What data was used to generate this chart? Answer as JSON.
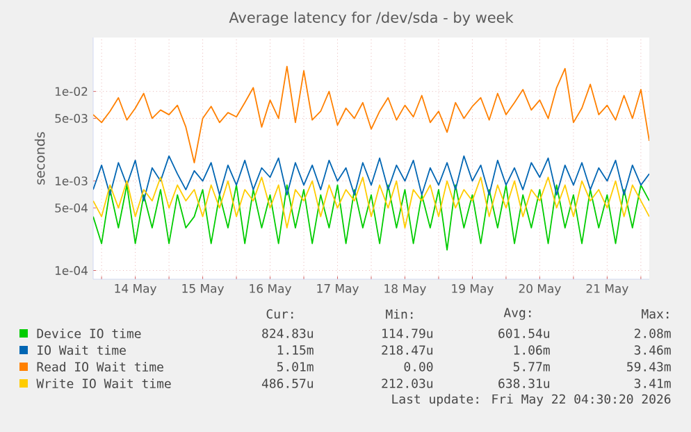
{
  "chart_data": {
    "type": "line",
    "title": "Average latency for /dev/sda - by week",
    "ylabel": "seconds",
    "log": "y",
    "grid": true,
    "legend": "bottom",
    "x": [
      "2026-05-13T21:00",
      "2026-05-14T00:00",
      "2026-05-14T03:00",
      "2026-05-14T06:00",
      "2026-05-14T09:00",
      "2026-05-14T12:00",
      "2026-05-14T15:00",
      "2026-05-14T18:00",
      "2026-05-14T21:00",
      "2026-05-15T00:00",
      "2026-05-15T03:00",
      "2026-05-15T06:00",
      "2026-05-15T09:00",
      "2026-05-15T12:00",
      "2026-05-15T15:00",
      "2026-05-15T18:00",
      "2026-05-15T21:00",
      "2026-05-16T00:00",
      "2026-05-16T03:00",
      "2026-05-16T06:00",
      "2026-05-16T09:00",
      "2026-05-16T12:00",
      "2026-05-16T15:00",
      "2026-05-16T18:00",
      "2026-05-16T21:00",
      "2026-05-17T00:00",
      "2026-05-17T03:00",
      "2026-05-17T06:00",
      "2026-05-17T09:00",
      "2026-05-17T12:00",
      "2026-05-17T15:00",
      "2026-05-17T18:00",
      "2026-05-17T21:00",
      "2026-05-18T00:00",
      "2026-05-18T03:00",
      "2026-05-18T06:00",
      "2026-05-18T09:00",
      "2026-05-18T12:00",
      "2026-05-18T15:00",
      "2026-05-18T18:00",
      "2026-05-18T21:00",
      "2026-05-19T00:00",
      "2026-05-19T03:00",
      "2026-05-19T06:00",
      "2026-05-19T09:00",
      "2026-05-19T12:00",
      "2026-05-19T15:00",
      "2026-05-19T18:00",
      "2026-05-19T21:00",
      "2026-05-20T00:00",
      "2026-05-20T03:00",
      "2026-05-20T06:00",
      "2026-05-20T09:00",
      "2026-05-20T12:00",
      "2026-05-20T15:00",
      "2026-05-20T18:00",
      "2026-05-20T21:00",
      "2026-05-21T00:00",
      "2026-05-21T03:00",
      "2026-05-21T06:00",
      "2026-05-21T09:00",
      "2026-05-21T12:00",
      "2026-05-21T15:00",
      "2026-05-21T18:00",
      "2026-05-21T21:00",
      "2026-05-22T00:00",
      "2026-05-22T03:00"
    ],
    "xlim": [
      "2026-05-13T21:00",
      "2026-05-22T03:00"
    ],
    "xticks": [
      {
        "value": "2026-05-14T00:00",
        "label": null
      },
      {
        "value": "2026-05-14T12:00",
        "label": "14 May"
      },
      {
        "value": "2026-05-15T00:00",
        "label": null
      },
      {
        "value": "2026-05-15T12:00",
        "label": "15 May"
      },
      {
        "value": "2026-05-16T00:00",
        "label": null
      },
      {
        "value": "2026-05-16T12:00",
        "label": "16 May"
      },
      {
        "value": "2026-05-17T00:00",
        "label": null
      },
      {
        "value": "2026-05-17T12:00",
        "label": "17 May"
      },
      {
        "value": "2026-05-18T00:00",
        "label": null
      },
      {
        "value": "2026-05-18T12:00",
        "label": "18 May"
      },
      {
        "value": "2026-05-19T00:00",
        "label": null
      },
      {
        "value": "2026-05-19T12:00",
        "label": "19 May"
      },
      {
        "value": "2026-05-20T00:00",
        "label": null
      },
      {
        "value": "2026-05-20T12:00",
        "label": "20 May"
      },
      {
        "value": "2026-05-21T00:00",
        "label": null
      },
      {
        "value": "2026-05-21T12:00",
        "label": "21 May"
      },
      {
        "value": "2026-05-22T00:00",
        "label": null
      }
    ],
    "ylim": [
      8e-05,
      0.04
    ],
    "yticks": [
      {
        "value": 0.0001,
        "label": "1e-04"
      },
      {
        "value": 0.0005,
        "label": "5e-04"
      },
      {
        "value": 0.001,
        "label": "1e-03"
      },
      {
        "value": 0.005,
        "label": "5e-03"
      },
      {
        "value": 0.01,
        "label": "1e-02"
      }
    ],
    "series": [
      {
        "name": "Device IO time",
        "color": "#00cc00",
        "values": [
          0.0004,
          0.0002,
          0.0008,
          0.0003,
          0.0009,
          0.0002,
          0.0007,
          0.0003,
          0.0008,
          0.0002,
          0.0007,
          0.0003,
          0.0004,
          0.0008,
          0.0002,
          0.0007,
          0.0003,
          0.0009,
          0.0002,
          0.0008,
          0.0003,
          0.0007,
          0.0002,
          0.0009,
          0.0003,
          0.0008,
          0.0002,
          0.0007,
          0.0003,
          0.0009,
          0.0002,
          0.0008,
          0.0003,
          0.0007,
          0.0002,
          0.0009,
          0.0003,
          0.0008,
          0.0002,
          0.0007,
          0.0003,
          0.0008,
          0.00017,
          0.0009,
          0.0003,
          0.0007,
          0.0002,
          0.0008,
          0.0003,
          0.0009,
          0.0002,
          0.0007,
          0.0003,
          0.0008,
          0.0002,
          0.0009,
          0.0003,
          0.0007,
          0.0002,
          0.0008,
          0.0003,
          0.0007,
          0.0002,
          0.0008,
          0.0003,
          0.0009,
          0.0006
        ]
      },
      {
        "name": "IO Wait time",
        "color": "#0066b3",
        "values": [
          0.0008,
          0.0015,
          0.0007,
          0.0016,
          0.0009,
          0.0017,
          0.0006,
          0.0014,
          0.001,
          0.0019,
          0.0012,
          0.0008,
          0.0013,
          0.001,
          0.0016,
          0.0007,
          0.0015,
          0.0009,
          0.0017,
          0.0008,
          0.0014,
          0.0011,
          0.0018,
          0.0007,
          0.0016,
          0.0009,
          0.0015,
          0.0008,
          0.0017,
          0.001,
          0.0014,
          0.0007,
          0.0016,
          0.0009,
          0.0018,
          0.0008,
          0.0015,
          0.001,
          0.0017,
          0.0007,
          0.0014,
          0.0009,
          0.0016,
          0.0008,
          0.0019,
          0.001,
          0.0015,
          0.0007,
          0.0017,
          0.0009,
          0.0014,
          0.0008,
          0.0016,
          0.0011,
          0.0018,
          0.0007,
          0.0015,
          0.0009,
          0.0016,
          0.0008,
          0.0014,
          0.001,
          0.0017,
          0.0007,
          0.0015,
          0.0009,
          0.0012
        ]
      },
      {
        "name": "Read IO Wait time",
        "color": "#ff8000",
        "values": [
          0.0055,
          0.0045,
          0.006,
          0.0085,
          0.0048,
          0.0065,
          0.0095,
          0.005,
          0.0062,
          0.0055,
          0.007,
          0.004,
          0.0016,
          0.005,
          0.0068,
          0.0045,
          0.0058,
          0.0052,
          0.0075,
          0.011,
          0.004,
          0.008,
          0.005,
          0.019,
          0.0045,
          0.017,
          0.0048,
          0.006,
          0.01,
          0.0042,
          0.0065,
          0.005,
          0.0075,
          0.0038,
          0.006,
          0.0085,
          0.0048,
          0.007,
          0.0052,
          0.009,
          0.0045,
          0.006,
          0.0035,
          0.0075,
          0.005,
          0.0068,
          0.0085,
          0.0048,
          0.0095,
          0.0055,
          0.0075,
          0.0105,
          0.0062,
          0.008,
          0.005,
          0.011,
          0.018,
          0.0045,
          0.0065,
          0.012,
          0.0055,
          0.007,
          0.0048,
          0.009,
          0.005,
          0.0105,
          0.0028
        ]
      },
      {
        "name": "Write IO Wait time",
        "color": "#ffcc00",
        "values": [
          0.0006,
          0.0004,
          0.0009,
          0.0005,
          0.001,
          0.0004,
          0.0008,
          0.0006,
          0.0011,
          0.0005,
          0.0009,
          0.0006,
          0.0008,
          0.0004,
          0.0009,
          0.0005,
          0.001,
          0.0004,
          0.0008,
          0.0006,
          0.0011,
          0.0005,
          0.0009,
          0.0003,
          0.0008,
          0.0006,
          0.001,
          0.0004,
          0.0009,
          0.0005,
          0.0008,
          0.0006,
          0.0011,
          0.0004,
          0.0009,
          0.0005,
          0.001,
          0.0003,
          0.0008,
          0.0006,
          0.0009,
          0.0004,
          0.001,
          0.0005,
          0.0008,
          0.0006,
          0.0011,
          0.0004,
          0.0009,
          0.0005,
          0.001,
          0.0004,
          0.0008,
          0.0006,
          0.0011,
          0.0005,
          0.0009,
          0.0004,
          0.001,
          0.0006,
          0.0008,
          0.0005,
          0.001,
          0.0004,
          0.0009,
          0.0006,
          0.0004
        ]
      }
    ],
    "annotations": [
      "Cur:",
      "Min:",
      "Avg:",
      "Max:",
      "824.83u",
      "114.79u",
      "601.54u",
      "2.08m",
      "1.15m",
      "218.47u",
      "1.06m",
      "3.46m",
      "5.01m",
      "0.00",
      "5.77m",
      "59.43m",
      "486.57u",
      "212.03u",
      "638.31u",
      "3.41m",
      "Last update: Fri May 22 04:30:20 2026"
    ]
  }
}
